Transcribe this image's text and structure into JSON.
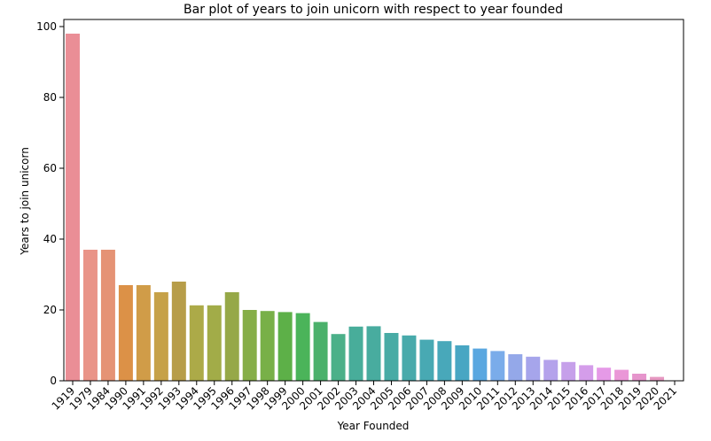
{
  "chart_data": {
    "type": "bar",
    "title": "Bar plot of years to join unicorn with respect to year founded",
    "xlabel": "Year Founded",
    "ylabel": "Years to join unicorn",
    "ylim": [
      0,
      102
    ],
    "yticks": [
      0,
      20,
      40,
      60,
      80,
      100
    ],
    "grid": false,
    "categories": [
      "1919",
      "1979",
      "1984",
      "1990",
      "1991",
      "1992",
      "1993",
      "1994",
      "1995",
      "1996",
      "1997",
      "1998",
      "1999",
      "2000",
      "2001",
      "2002",
      "2003",
      "2004",
      "2005",
      "2006",
      "2007",
      "2008",
      "2009",
      "2010",
      "2011",
      "2012",
      "2013",
      "2014",
      "2015",
      "2016",
      "2017",
      "2018",
      "2019",
      "2020",
      "2021"
    ],
    "values": [
      98,
      37,
      37,
      27,
      27,
      25,
      28,
      21.3,
      21.3,
      25,
      20,
      19.7,
      19.4,
      19.1,
      16.6,
      13.2,
      15.3,
      15.4,
      13.5,
      12.8,
      11.6,
      11.2,
      10,
      9.1,
      8.4,
      7.5,
      6.8,
      5.9,
      5.3,
      4.4,
      3.7,
      3.1,
      2,
      1.1,
      0
    ],
    "colors": [
      "#ea8e96",
      "#e99488",
      "#e59375",
      "#dc9147",
      "#d09c48",
      "#c6a148",
      "#b79d49",
      "#acaa48",
      "#a2ac48",
      "#96a848",
      "#86ae48",
      "#78b048",
      "#5db048",
      "#4bb45a",
      "#4bb16b",
      "#4bb089",
      "#48ad9a",
      "#48ac9f",
      "#48aba5",
      "#48aaab",
      "#48a9b3",
      "#48a8ba",
      "#48a6c3",
      "#5aa7e0",
      "#7aacea",
      "#94a8e9",
      "#a6a5eb",
      "#b4a2eb",
      "#c6a0ea",
      "#d49dea",
      "#e59ae7",
      "#ea97d7",
      "#e695cc",
      "#e698c1",
      "#e697b8"
    ]
  }
}
